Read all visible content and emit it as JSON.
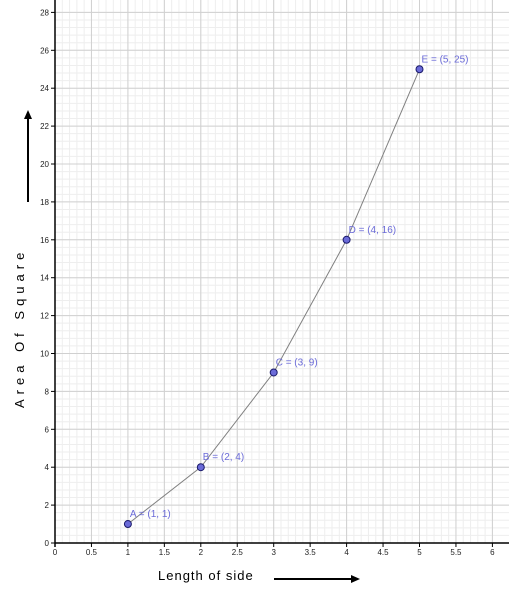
{
  "chart_data": {
    "type": "scatter",
    "connected": true,
    "xlabel": "Length of side",
    "ylabel": "Area Of Square",
    "xlim": [
      0,
      6
    ],
    "ylim": [
      0,
      28
    ],
    "x_ticks": [
      "0",
      "0.5",
      "1",
      "1.5",
      "2",
      "2.5",
      "3",
      "3.5",
      "4",
      "4.5",
      "5",
      "5.5",
      "6"
    ],
    "y_ticks": [
      "0",
      "2",
      "4",
      "6",
      "8",
      "10",
      "12",
      "14",
      "16",
      "18",
      "20",
      "22",
      "24",
      "26",
      "28"
    ],
    "grid": true,
    "points": [
      {
        "label": "A = (1, 1)",
        "x": 1,
        "y": 1
      },
      {
        "label": "B = (2, 4)",
        "x": 2,
        "y": 4
      },
      {
        "label": "C = (3, 9)",
        "x": 3,
        "y": 9
      },
      {
        "label": "D = (4, 16)",
        "x": 4,
        "y": 16
      },
      {
        "label": "E = (5, 25)",
        "x": 5,
        "y": 25
      }
    ],
    "colors": {
      "point_fill": "#6b6bd8",
      "point_stroke": "#1a1a6a",
      "line": "#808080",
      "label": "#6b6bd8",
      "grid": "#d0d0d0"
    }
  }
}
